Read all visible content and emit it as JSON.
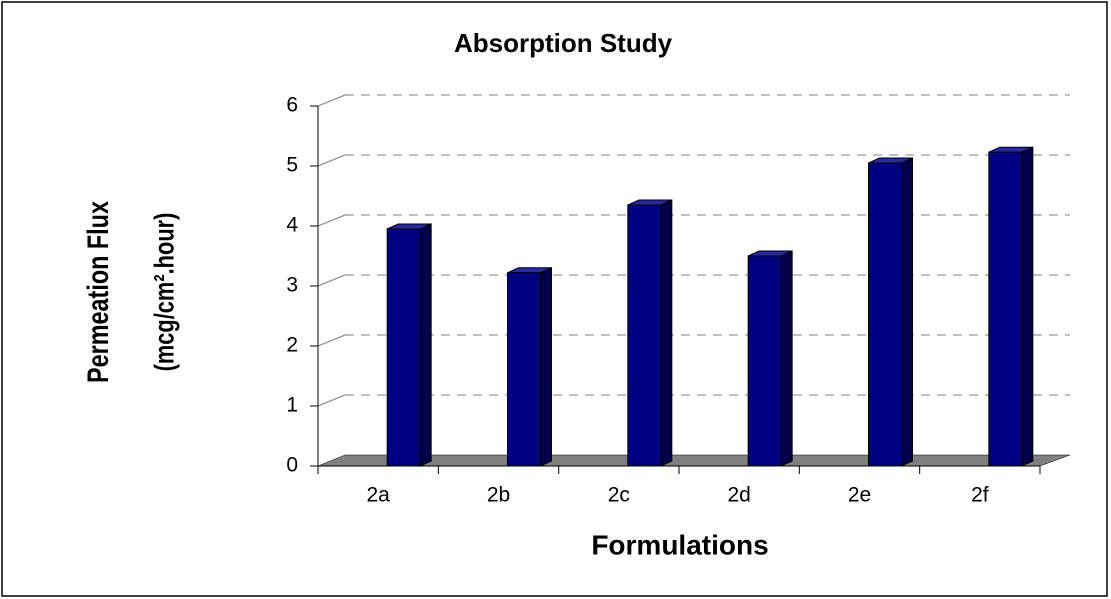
{
  "chart_data": {
    "type": "bar",
    "title": "Absorption Study",
    "x_label": "Formulations",
    "y_label": [
      "Permeation Flux",
      "(mcg/cm².hour)"
    ],
    "categories": [
      "2a",
      "2b",
      "2c",
      "2d",
      "2e",
      "2f"
    ],
    "values": [
      3.95,
      3.22,
      4.35,
      3.5,
      5.05,
      5.23
    ],
    "color": "#000080",
    "ylim": [
      0,
      6
    ],
    "yticks": [
      0,
      1,
      2,
      3,
      4,
      5,
      6
    ],
    "grid": true
  }
}
